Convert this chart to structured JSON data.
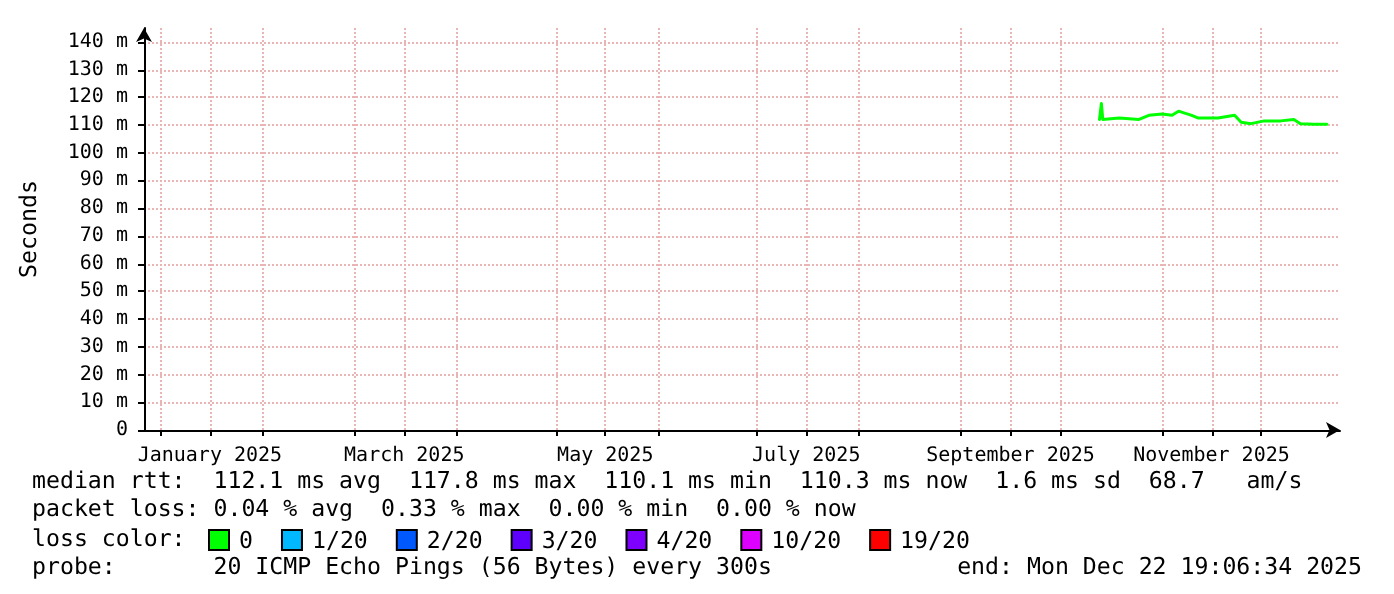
{
  "chart_data": {
    "type": "line",
    "ylabel": "Seconds",
    "legend_title": "loss color:",
    "x": [
      "2025-10-13",
      "2025-10-13T14:00",
      "2025-10-14",
      "2025-10-19",
      "2025-10-25",
      "2025-10-28",
      "2025-11-01",
      "2025-11-04",
      "2025-11-06",
      "2025-11-10",
      "2025-11-12",
      "2025-11-18",
      "2025-11-23",
      "2025-11-25",
      "2025-11-28",
      "2025-12-02",
      "2025-12-07",
      "2025-12-11",
      "2025-12-13",
      "2025-12-17",
      "2025-12-21"
    ],
    "series": [
      {
        "name": "0",
        "color": "#00ff00",
        "values": [
          112,
          117.8,
          112,
          112.5,
          112,
          113.5,
          114,
          113.5,
          115,
          113.5,
          112.5,
          112.5,
          113.5,
          111,
          110.5,
          111.5,
          111.5,
          112,
          110.5,
          110.3,
          110.3
        ]
      },
      {
        "name": "1/20",
        "color": "#00b8ff",
        "values": [
          null,
          null,
          null,
          null,
          null,
          null,
          null,
          null,
          null,
          null,
          null,
          null,
          null,
          null,
          null,
          null,
          null,
          null,
          null,
          null,
          null
        ]
      },
      {
        "name": "2/20",
        "color": "#0059ff",
        "values": [
          null,
          null,
          null,
          null,
          null,
          null,
          null,
          null,
          null,
          null,
          null,
          null,
          null,
          null,
          null,
          null,
          null,
          null,
          null,
          null,
          null
        ]
      },
      {
        "name": "3/20",
        "color": "#5e00ff",
        "values": [
          null,
          null,
          null,
          null,
          null,
          null,
          null,
          null,
          null,
          null,
          null,
          null,
          null,
          null,
          null,
          null,
          null,
          null,
          null,
          null,
          null
        ]
      },
      {
        "name": "4/20",
        "color": "#7e00ff",
        "values": [
          null,
          null,
          null,
          null,
          null,
          null,
          null,
          null,
          null,
          null,
          null,
          null,
          null,
          null,
          null,
          null,
          null,
          null,
          null,
          null,
          null
        ]
      },
      {
        "name": "10/20",
        "color": "#dd00ff",
        "values": [
          null,
          null,
          null,
          null,
          null,
          null,
          null,
          null,
          null,
          null,
          null,
          null,
          null,
          null,
          null,
          null,
          null,
          null,
          null,
          null,
          null
        ]
      },
      {
        "name": "19/20",
        "color": "#ff0000",
        "values": [
          null,
          null,
          null,
          null,
          null,
          null,
          null,
          null,
          null,
          null,
          null,
          null,
          null,
          null,
          null,
          null,
          null,
          null,
          null,
          null,
          null
        ]
      }
    ],
    "xlim": [
      "2024-12-27",
      "2025-12-25"
    ],
    "xticks": [
      {
        "value": "2025-01-01",
        "label": null
      },
      {
        "value": "2025-01-16",
        "label": "January 2025"
      },
      {
        "value": "2025-02-01",
        "label": null
      },
      {
        "value": "2025-03-01",
        "label": null
      },
      {
        "value": "2025-03-16",
        "label": "March 2025"
      },
      {
        "value": "2025-04-01",
        "label": null
      },
      {
        "value": "2025-05-01",
        "label": null
      },
      {
        "value": "2025-05-16",
        "label": "May 2025"
      },
      {
        "value": "2025-06-01",
        "label": null
      },
      {
        "value": "2025-07-01",
        "label": null
      },
      {
        "value": "2025-07-16",
        "label": "July 2025"
      },
      {
        "value": "2025-08-01",
        "label": null
      },
      {
        "value": "2025-09-01",
        "label": null
      },
      {
        "value": "2025-09-16",
        "label": "September 2025"
      },
      {
        "value": "2025-10-01",
        "label": null
      },
      {
        "value": "2025-11-01",
        "label": null
      },
      {
        "value": "2025-11-16",
        "label": "November 2025"
      },
      {
        "value": "2025-12-01",
        "label": null
      }
    ],
    "ylim": [
      0,
      145
    ],
    "yticks": [
      "0",
      {
        "value": 10,
        "label": "10 m"
      },
      {
        "value": 20,
        "label": "20 m"
      },
      {
        "value": 30,
        "label": "30 m"
      },
      {
        "value": 40,
        "label": "40 m"
      },
      {
        "value": 50,
        "label": "50 m"
      },
      {
        "value": 60,
        "label": "60 m"
      },
      {
        "value": 70,
        "label": "70 m"
      },
      {
        "value": 80,
        "label": "80 m"
      },
      {
        "value": 90,
        "label": "90 m"
      },
      {
        "value": 100,
        "label": "100 m"
      },
      {
        "value": 110,
        "label": "110 m"
      },
      {
        "value": 120,
        "label": "120 m"
      },
      {
        "value": 130,
        "label": "130 m"
      },
      {
        "value": 140,
        "label": "140 m"
      }
    ],
    "grid": true,
    "legend": "bottom",
    "marker": "none",
    "line_style": "solid",
    "annotations": [
      "median rtt:  112.1 ms avg  117.8 ms max  110.1 ms min  110.3 ms now  1.6 ms sd  68.7   am/s",
      "packet loss: 0.04 % avg  0.33 % max  0.00 % min  0.00 % now",
      "probe:       20 ICMP Echo Pings (56 Bytes) every 300s",
      "end: Mon Dec 22 19:06:34 2025"
    ]
  }
}
